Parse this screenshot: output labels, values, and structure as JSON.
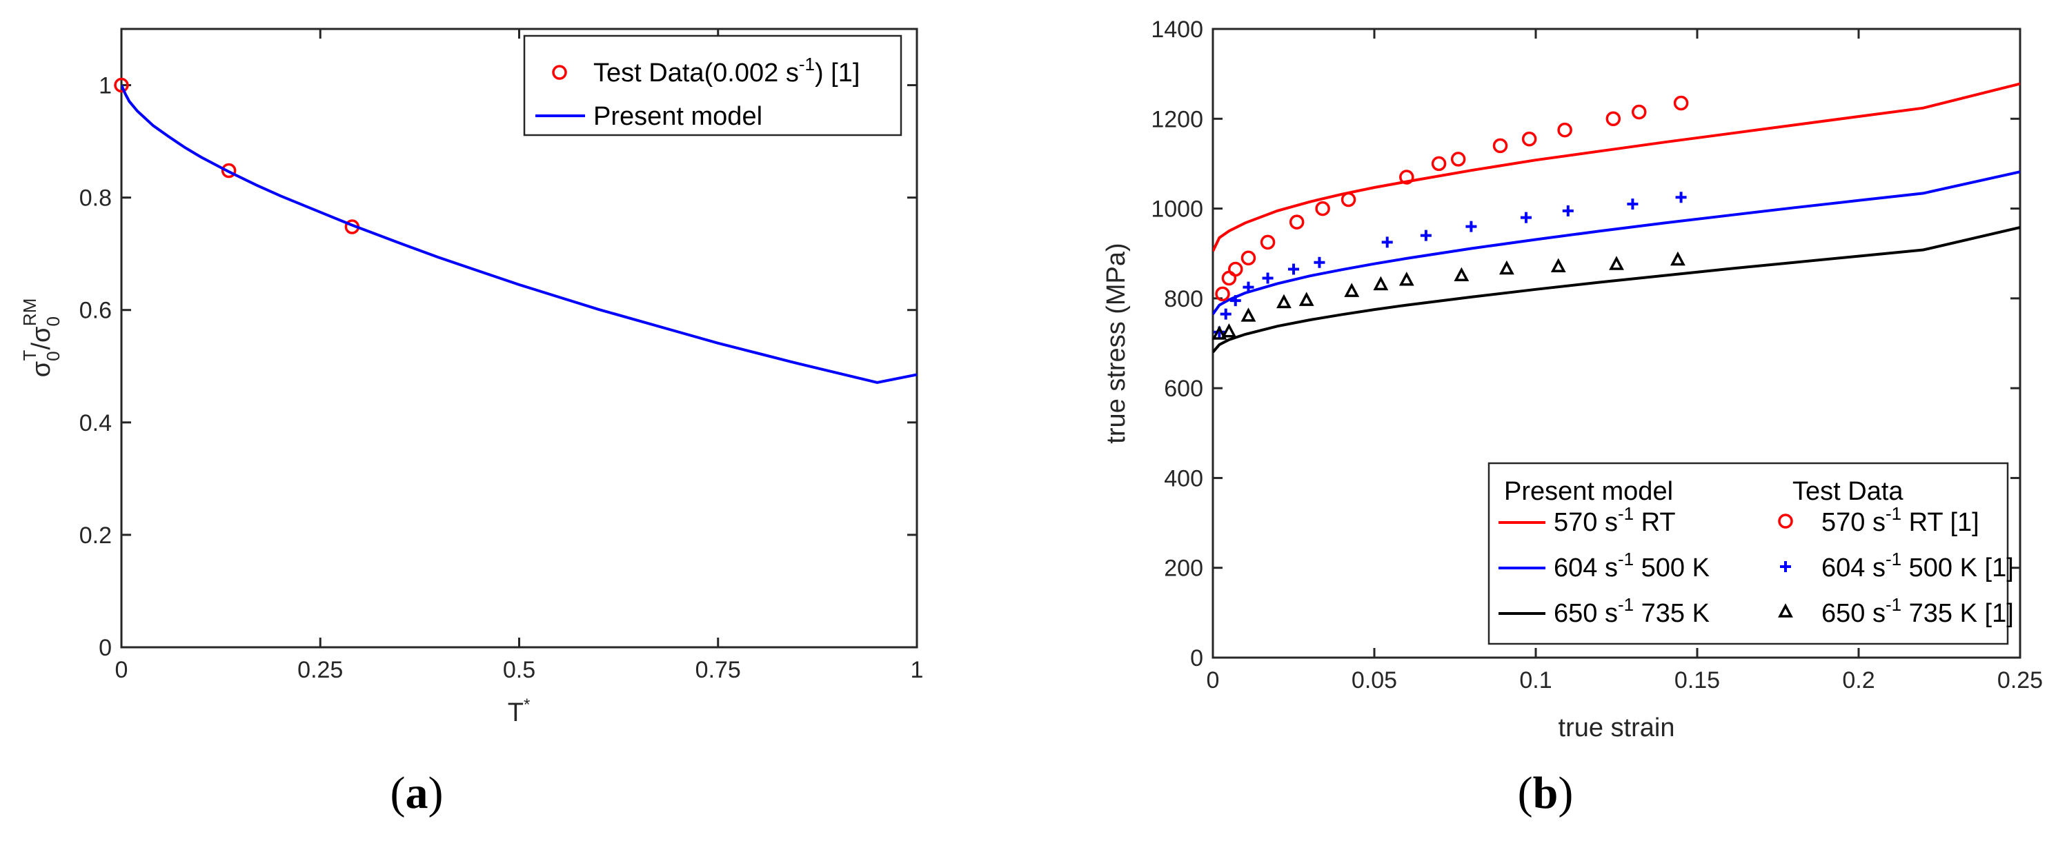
{
  "chart_data": [
    {
      "type": "line",
      "panel_label": "a",
      "xlabel": "T",
      "xlabel_sup": "*",
      "ylabel": {
        "base": "σ",
        "num_sub": "0",
        "num_sup": "T",
        "slash": "/",
        "den_sub": "0",
        "den_sup": "RM"
      },
      "xlim": [
        0,
        1
      ],
      "ylim": [
        0,
        1.1
      ],
      "xticks": [
        0,
        0.25,
        0.5,
        0.75,
        1
      ],
      "xtick_labels": [
        "0",
        "0.25",
        "0.5",
        "0.75",
        "1"
      ],
      "yticks": [
        0,
        0.2,
        0.4,
        0.6,
        0.8,
        1
      ],
      "ytick_labels": [
        "0",
        "0.2",
        "0.4",
        "0.6",
        "0.8",
        "1"
      ],
      "series": [
        {
          "name": "Test Data",
          "legend_main": "Test Data(0.002 s",
          "legend_sup": "-1",
          "legend_tail": ") [1]",
          "kind": "marker",
          "marker": "circle",
          "color": "#ff0000",
          "x": [
            0,
            0.135,
            0.29
          ],
          "y": [
            1.0,
            0.848,
            0.748
          ]
        },
        {
          "name": "Present model",
          "legend_main": "Present model",
          "kind": "line",
          "color": "#0000ff",
          "x": [
            0,
            0.005,
            0.01,
            0.02,
            0.04,
            0.06,
            0.08,
            0.1,
            0.135,
            0.17,
            0.2,
            0.25,
            0.29,
            0.35,
            0.4,
            0.45,
            0.5,
            0.55,
            0.6,
            0.65,
            0.7,
            0.75,
            0.8,
            0.85,
            0.9,
            0.95,
            1.0
          ],
          "y": [
            1.0,
            0.984,
            0.971,
            0.954,
            0.928,
            0.908,
            0.889,
            0.872,
            0.846,
            0.822,
            0.803,
            0.774,
            0.751,
            0.719,
            0.693,
            0.669,
            0.645,
            0.623,
            0.601,
            0.581,
            0.561,
            0.541,
            0.523,
            0.505,
            0.488,
            0.471,
            0.485
          ]
        }
      ]
    },
    {
      "type": "line",
      "panel_label": "b",
      "xlabel": "true strain",
      "ylabel": "true stress (MPa)",
      "xlim": [
        0,
        0.25
      ],
      "ylim": [
        0,
        1400
      ],
      "xticks": [
        0,
        0.05,
        0.1,
        0.15,
        0.2,
        0.25
      ],
      "xtick_labels": [
        "0",
        "0.05",
        "0.1",
        "0.15",
        "0.2",
        "0.25"
      ],
      "yticks": [
        0,
        200,
        400,
        600,
        800,
        1000,
        1200,
        1400
      ],
      "ytick_labels": [
        "0",
        "200",
        "400",
        "600",
        "800",
        "1000",
        "1200",
        "1400"
      ],
      "legend_headers": [
        "Present model",
        "Test Data"
      ],
      "series": [
        {
          "name": "570 s-1 RT",
          "legend_rate": "570 s",
          "legend_sup": "-1",
          "legend_tail": " RT",
          "kind": "line",
          "color": "#ff0000",
          "x": [
            0,
            0.002,
            0.005,
            0.01,
            0.02,
            0.03,
            0.04,
            0.05,
            0.06,
            0.08,
            0.1,
            0.12,
            0.14,
            0.16,
            0.18,
            0.2,
            0.22,
            0.25
          ],
          "y": [
            905,
            935,
            950,
            968,
            995,
            1015,
            1032,
            1047,
            1060,
            1085,
            1108,
            1128,
            1148,
            1167,
            1186,
            1205,
            1224,
            1278
          ]
        },
        {
          "name": "604 s-1 500 K",
          "legend_rate": "604 s",
          "legend_sup": "-1",
          "legend_tail": " 500 K",
          "kind": "line",
          "color": "#0000ff",
          "x": [
            0,
            0.002,
            0.005,
            0.01,
            0.02,
            0.03,
            0.04,
            0.05,
            0.06,
            0.08,
            0.1,
            0.12,
            0.14,
            0.16,
            0.18,
            0.2,
            0.22,
            0.25
          ],
          "y": [
            765,
            785,
            797,
            812,
            833,
            850,
            864,
            877,
            889,
            911,
            931,
            950,
            968,
            985,
            1002,
            1018,
            1034,
            1082
          ]
        },
        {
          "name": "650 s-1 735 K",
          "legend_rate": "650 s",
          "legend_sup": "-1",
          "legend_tail": " 735 K",
          "kind": "line",
          "color": "#000000",
          "x": [
            0,
            0.002,
            0.005,
            0.01,
            0.02,
            0.03,
            0.04,
            0.05,
            0.06,
            0.08,
            0.1,
            0.12,
            0.14,
            0.16,
            0.18,
            0.2,
            0.22,
            0.25
          ],
          "y": [
            680,
            697,
            708,
            720,
            738,
            752,
            764,
            775,
            785,
            803,
            820,
            836,
            851,
            866,
            880,
            894,
            908,
            958
          ]
        },
        {
          "name": "570 s-1 RT [1]",
          "legend_rate": "570 s",
          "legend_sup": "-1",
          "legend_tail": " RT [1]",
          "kind": "marker",
          "marker": "circle",
          "color": "#ff0000",
          "x": [
            0.003,
            0.005,
            0.007,
            0.011,
            0.017,
            0.026,
            0.034,
            0.042,
            0.06,
            0.07,
            0.076,
            0.089,
            0.098,
            0.109,
            0.124,
            0.132,
            0.145
          ],
          "y": [
            810,
            845,
            865,
            890,
            925,
            970,
            1000,
            1020,
            1070,
            1100,
            1110,
            1140,
            1155,
            1175,
            1200,
            1215,
            1235
          ]
        },
        {
          "name": "604 s-1 500 K [1]",
          "legend_rate": "604 s",
          "legend_sup": "-1",
          "legend_tail": " 500 K [1]",
          "kind": "marker",
          "marker": "plus",
          "color": "#0000ff",
          "x": [
            0.002,
            0.004,
            0.007,
            0.011,
            0.017,
            0.025,
            0.033,
            0.054,
            0.066,
            0.08,
            0.097,
            0.11,
            0.13,
            0.145
          ],
          "y": [
            725,
            765,
            795,
            825,
            845,
            865,
            880,
            925,
            940,
            960,
            980,
            995,
            1010,
            1025
          ]
        },
        {
          "name": "650 s-1 735 K [1]",
          "legend_rate": "650 s",
          "legend_sup": "-1",
          "legend_tail": " 735 K [1]",
          "kind": "marker",
          "marker": "triangle",
          "color": "#000000",
          "x": [
            0.002,
            0.005,
            0.011,
            0.022,
            0.029,
            0.043,
            0.052,
            0.06,
            0.077,
            0.091,
            0.107,
            0.125,
            0.144
          ],
          "y": [
            720,
            725,
            760,
            790,
            795,
            815,
            830,
            840,
            850,
            865,
            870,
            875,
            885
          ]
        }
      ]
    }
  ],
  "captions": {
    "a": "a",
    "b": "b"
  }
}
